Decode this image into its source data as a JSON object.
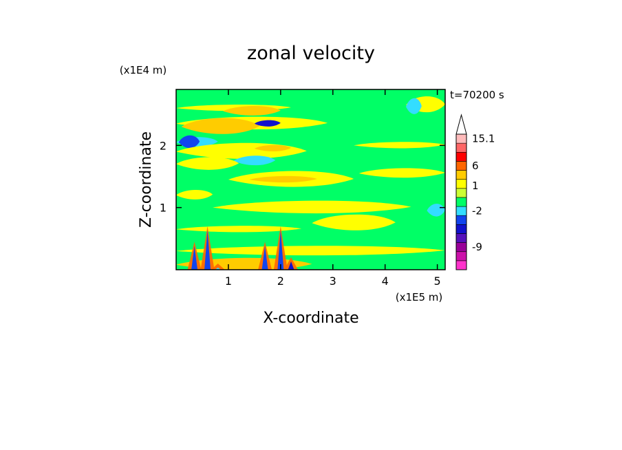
{
  "chart_data": {
    "type": "heatmap",
    "title": "zonal velocity",
    "time_label": "t=70200 s",
    "xlabel": "X-coordinate",
    "ylabel": "Z-coordinate",
    "x_unit": "(x1E5 m)",
    "y_unit": "(x1E4 m)",
    "xlim": [
      0,
      5.15
    ],
    "ylim": [
      0,
      2.9
    ],
    "xticks": [
      "1",
      "2",
      "3",
      "4",
      "5"
    ],
    "yticks": [
      "1",
      "2"
    ],
    "grid": false,
    "colorbar": {
      "position": "right",
      "extend": "max",
      "levels": [
        {
          "color": "#ff33cc"
        },
        {
          "color": "#cc11aa"
        },
        {
          "color": "#990099"
        },
        {
          "color": "#5511bb"
        },
        {
          "color": "#1111cc"
        },
        {
          "color": "#1144ee"
        },
        {
          "color": "#33ddff"
        },
        {
          "color": "#00ff66"
        },
        {
          "color": "#ccff33"
        },
        {
          "color": "#ffff00"
        },
        {
          "color": "#ffcc00"
        },
        {
          "color": "#ff6600"
        },
        {
          "color": "#ff0000"
        },
        {
          "color": "#ff6666"
        },
        {
          "color": "#ffbbbb"
        }
      ],
      "tick_labels": [
        {
          "text": "-9",
          "at_level": 2
        },
        {
          "text": "-2",
          "at_level": 6
        },
        {
          "text": "1",
          "at_level": 8.8
        },
        {
          "text": "6",
          "at_level": 11
        },
        {
          "text": "15.1",
          "at_level": 14
        }
      ]
    },
    "palette": {
      "background": "#00ff66",
      "yellow": "#ffff00",
      "orange": "#ffcc00",
      "cyan": "#33ddff",
      "blue": "#1144ee",
      "darkblue": "#1111cc",
      "red": "#ff6600"
    },
    "features": [
      {
        "kind": "band",
        "z": 2.6,
        "x0": 0.0,
        "x1": 2.2,
        "color": "yellow"
      },
      {
        "kind": "band",
        "z": 2.55,
        "x0": 0.9,
        "x1": 2.0,
        "color": "orange"
      },
      {
        "kind": "band",
        "z": 2.35,
        "x0": 0.0,
        "x1": 2.9,
        "color": "yellow"
      },
      {
        "kind": "band",
        "z": 2.3,
        "x0": 0.1,
        "x1": 1.6,
        "color": "orange"
      },
      {
        "kind": "band",
        "z": 2.35,
        "x0": 1.5,
        "x1": 2.0,
        "color": "darkblue"
      },
      {
        "kind": "band",
        "z": 2.05,
        "x0": 0.0,
        "x1": 0.8,
        "color": "cyan"
      },
      {
        "kind": "band",
        "z": 2.05,
        "x0": 0.05,
        "x1": 0.45,
        "color": "blue"
      },
      {
        "kind": "band",
        "z": 1.9,
        "x0": 0.0,
        "x1": 2.5,
        "color": "yellow"
      },
      {
        "kind": "band",
        "z": 1.95,
        "x0": 1.5,
        "x1": 2.2,
        "color": "orange"
      },
      {
        "kind": "band",
        "z": 1.75,
        "x0": 1.1,
        "x1": 1.9,
        "color": "cyan"
      },
      {
        "kind": "band",
        "z": 1.7,
        "x0": 0.0,
        "x1": 1.2,
        "color": "yellow"
      },
      {
        "kind": "band",
        "z": 1.45,
        "x0": 1.0,
        "x1": 3.4,
        "color": "yellow"
      },
      {
        "kind": "band",
        "z": 1.45,
        "x0": 1.4,
        "x1": 2.7,
        "color": "orange"
      },
      {
        "kind": "band",
        "z": 1.2,
        "x0": 0.0,
        "x1": 0.7,
        "color": "yellow"
      },
      {
        "kind": "band",
        "z": 1.0,
        "x0": 0.7,
        "x1": 4.5,
        "color": "yellow"
      },
      {
        "kind": "band",
        "z": 0.75,
        "x0": 2.6,
        "x1": 4.2,
        "color": "yellow"
      },
      {
        "kind": "band",
        "z": 0.65,
        "x0": 0.0,
        "x1": 2.4,
        "color": "yellow"
      },
      {
        "kind": "band",
        "z": 0.3,
        "x0": 0.0,
        "x1": 5.15,
        "color": "yellow"
      },
      {
        "kind": "band",
        "z": 0.08,
        "x0": 0.0,
        "x1": 2.6,
        "color": "orange"
      },
      {
        "kind": "band",
        "z": 2.65,
        "x0": 4.4,
        "x1": 5.15,
        "color": "yellow"
      },
      {
        "kind": "band",
        "z": 2.0,
        "x0": 3.4,
        "x1": 5.15,
        "color": "yellow"
      },
      {
        "kind": "band",
        "z": 1.55,
        "x0": 3.5,
        "x1": 5.15,
        "color": "yellow"
      },
      {
        "kind": "band",
        "z": 0.95,
        "x0": 4.8,
        "x1": 5.15,
        "color": "cyan"
      },
      {
        "kind": "band",
        "z": 2.62,
        "x0": 4.4,
        "x1": 4.7,
        "color": "cyan"
      },
      {
        "kind": "spike",
        "x": 0.6,
        "z": 0.7,
        "color": "blue"
      },
      {
        "kind": "spike",
        "x": 2.0,
        "z": 0.7,
        "color": "blue"
      },
      {
        "kind": "spike",
        "x": 1.7,
        "z": 0.45,
        "color": "blue"
      },
      {
        "kind": "spike",
        "x": 0.35,
        "z": 0.45,
        "color": "blue"
      },
      {
        "kind": "spike",
        "x": 2.2,
        "z": 0.2,
        "color": "darkblue"
      },
      {
        "kind": "spike",
        "x": 0.8,
        "z": 0.1,
        "color": "cyan"
      }
    ]
  }
}
